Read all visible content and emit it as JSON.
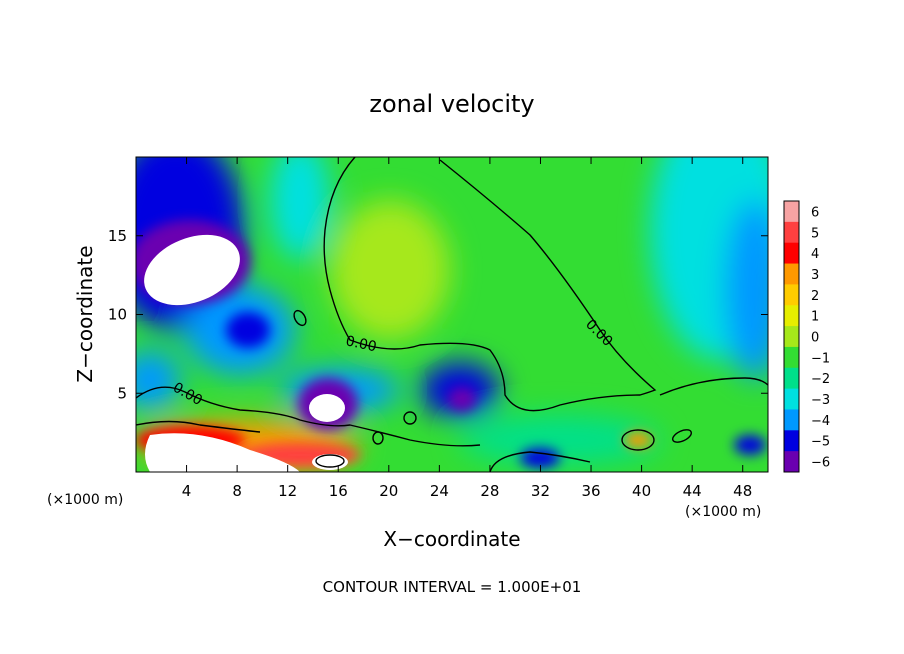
{
  "chart_data": {
    "type": "heatmap",
    "title": "zonal velocity",
    "xlabel": "X−coordinate",
    "ylabel": "Z−coordinate",
    "x_unit_label": "(×1000 m)",
    "z_unit_label": "(×1000 m)",
    "footer": "CONTOUR INTERVAL = 1.000E+01",
    "xlim": [
      0,
      50
    ],
    "ylim": [
      0,
      20
    ],
    "x_ticks": [
      4,
      8,
      12,
      16,
      20,
      24,
      28,
      32,
      36,
      40,
      44,
      48
    ],
    "x_tick_labels": [
      "4",
      "8",
      "12",
      "16",
      "20",
      "24",
      "28",
      "32",
      "36",
      "40",
      "44",
      "48"
    ],
    "y_ticks": [
      5,
      10,
      15
    ],
    "y_tick_labels": [
      "5",
      "10",
      "15"
    ],
    "contour_labels": [
      "0.00",
      "0.00",
      "0.00"
    ],
    "colorbar": {
      "levels": [
        6,
        5,
        4,
        3,
        2,
        1,
        0,
        -1,
        -2,
        -3,
        -4,
        -5,
        -6
      ],
      "labels": [
        "6",
        "5",
        "4",
        "3",
        "2",
        "1",
        "0",
        "−1",
        "−2",
        "−3",
        "−4",
        "−5",
        "−6"
      ],
      "colors": [
        "#f7a3a3",
        "#ff4040",
        "#ff0000",
        "#ff9900",
        "#ffcc00",
        "#e6ee00",
        "#a6e81a",
        "#33dd33",
        "#00e08a",
        "#00e0e0",
        "#0099ff",
        "#0000e0",
        "#6a00b0"
      ]
    }
  }
}
